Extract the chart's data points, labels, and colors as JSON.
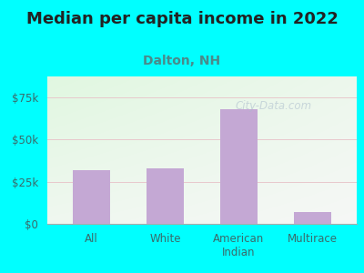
{
  "title": "Median per capita income in 2022",
  "subtitle": "Dalton, NH",
  "categories": [
    "All",
    "White",
    "American\nIndian",
    "Multirace"
  ],
  "values": [
    32000,
    33000,
    68000,
    7000
  ],
  "bar_color": "#c4a8d4",
  "background_outer": "#00FFFF",
  "title_color": "#222222",
  "subtitle_color": "#4a8a8a",
  "axis_label_color": "#3a6b6b",
  "tick_label_color": "#3a6b6b",
  "ylim": [
    0,
    87500
  ],
  "yticks": [
    0,
    25000,
    50000,
    75000
  ],
  "ytick_labels": [
    "$0",
    "$25k",
    "$50k",
    "$75k"
  ],
  "grid_color": "#e8c8cc",
  "watermark": "City-Data.com",
  "title_fontsize": 13,
  "subtitle_fontsize": 10,
  "tick_fontsize": 8.5
}
